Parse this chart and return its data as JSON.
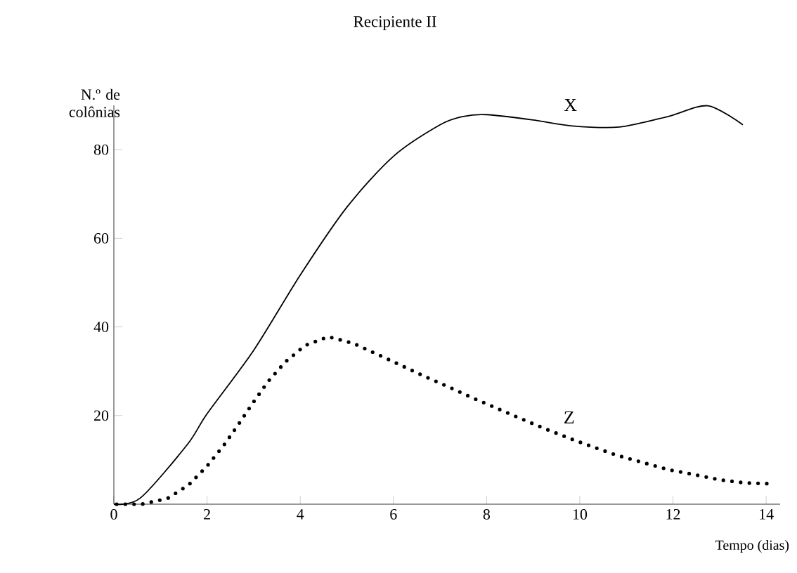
{
  "chart_data": {
    "type": "line",
    "title": "Recipiente II",
    "xlabel": "Tempo (dias)",
    "ylabel": "N.º de colônias",
    "xlim": [
      0,
      14.3
    ],
    "ylim": [
      0,
      90
    ],
    "xticks": [
      0,
      2,
      4,
      6,
      8,
      10,
      12,
      14
    ],
    "yticks": [
      20,
      40,
      60,
      80
    ],
    "grid": false,
    "legend": false,
    "series": [
      {
        "name": "X",
        "color": "#000000",
        "line_style": "solid",
        "x": [
          0,
          0.57,
          1.58,
          2,
          3,
          4,
          5,
          6,
          7,
          7.5,
          8,
          9,
          9.8,
          10.85,
          11.9,
          12.75,
          13.5
        ],
        "values": [
          0,
          1.4,
          13.5,
          20.4,
          34.7,
          51.7,
          67,
          78.5,
          85.6,
          87.5,
          87.9,
          86.7,
          85.4,
          85.1,
          87.5,
          89.9,
          85.6
        ]
      },
      {
        "name": "Z",
        "color": "#000000",
        "line_style": "dotted",
        "x": [
          0.06,
          0.6,
          1.15,
          1.6,
          2.0,
          2.36,
          2.68,
          2.98,
          3.31,
          3.68,
          4.1,
          4.6,
          5.14,
          5.64,
          6.15,
          6.7,
          7.22,
          7.72,
          8.23,
          8.76,
          9.26,
          9.77,
          10.29,
          10.81,
          11.36,
          11.9,
          12.45,
          13.0,
          13.55,
          14.13
        ],
        "values": [
          0,
          0,
          1.3,
          4.3,
          8.6,
          13.3,
          18.1,
          22.8,
          27.7,
          32.1,
          35.8,
          37.8,
          36.3,
          33.9,
          31.4,
          28.7,
          26.3,
          23.9,
          21.6,
          19.2,
          17.0,
          14.9,
          12.9,
          11.0,
          9.4,
          7.8,
          6.7,
          5.5,
          4.8,
          4.6
        ]
      }
    ]
  }
}
